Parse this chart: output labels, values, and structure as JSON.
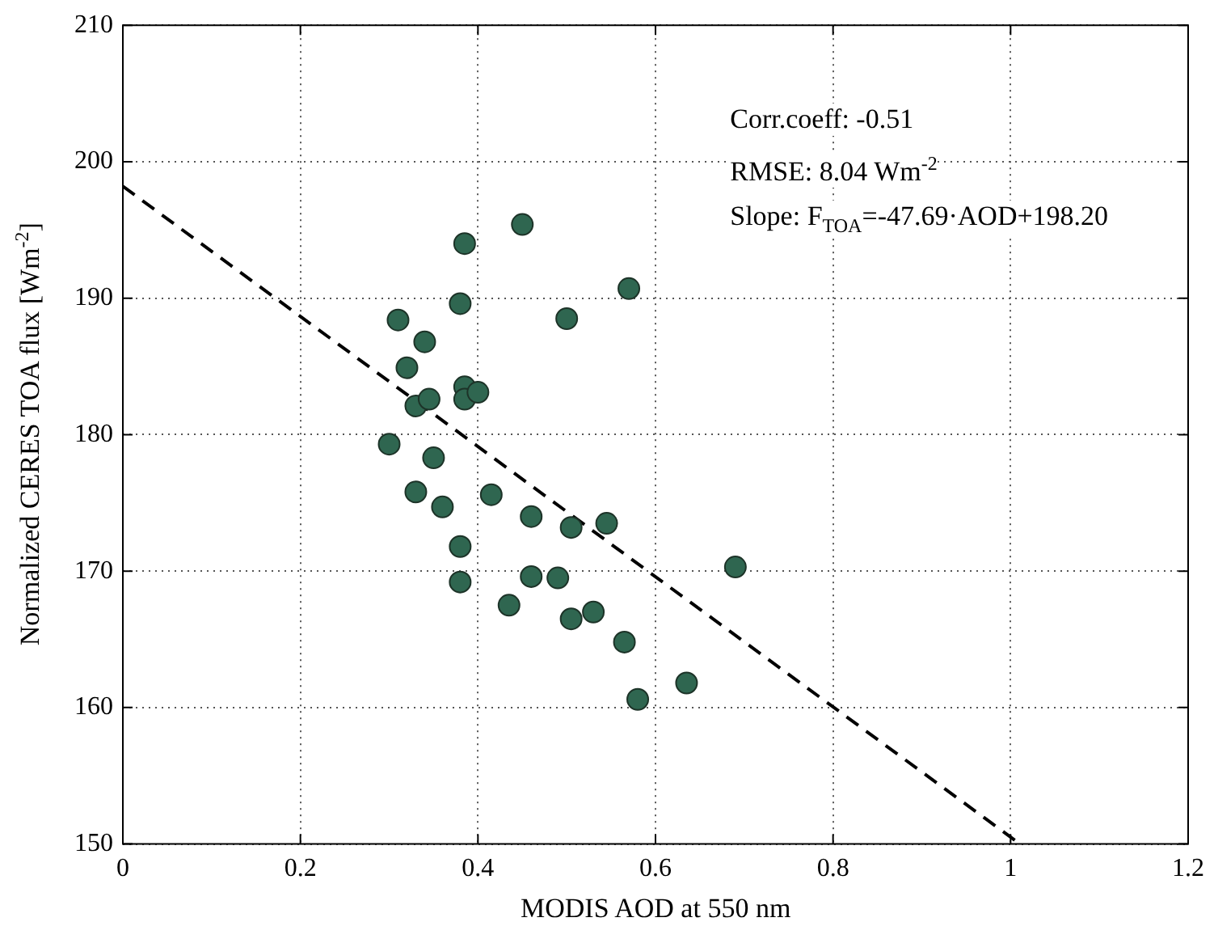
{
  "chart_data": {
    "type": "scatter",
    "xlabel": "MODIS AOD at 550 nm",
    "ylabel": "Normalized CERES TOA flux [Wm$^{-2}$]",
    "annotations": [
      "Corr.coeff: -0.51",
      "RMSE: 8.04 Wm$^{-2}$",
      "Slope: F$_{TOA}$=-47.69·AOD+198.20"
    ],
    "series": [
      {
        "color": "#2f6650",
        "marker": "circle",
        "x": [
          0.3,
          0.31,
          0.32,
          0.33,
          0.34,
          0.345,
          0.33,
          0.35,
          0.36,
          0.38,
          0.385,
          0.385,
          0.385,
          0.4,
          0.38,
          0.38,
          0.415,
          0.435,
          0.45,
          0.46,
          0.46,
          0.49,
          0.5,
          0.505,
          0.505,
          0.53,
          0.545,
          0.565,
          0.57,
          0.58,
          0.635,
          0.69
        ],
        "values": [
          179.3,
          188.4,
          184.9,
          182.1,
          186.8,
          182.6,
          175.8,
          178.3,
          174.7,
          189.6,
          194.0,
          183.5,
          182.6,
          183.1,
          171.8,
          169.2,
          175.6,
          167.5,
          195.4,
          174.0,
          169.6,
          169.5,
          188.5,
          173.2,
          166.5,
          167.0,
          173.5,
          164.8,
          190.7,
          160.6,
          161.8,
          170.3
        ]
      },
      {
        "type": "line",
        "color": "#000000",
        "line_style": "dashed",
        "marker": "none",
        "x": [
          0,
          1.0107
        ],
        "values": [
          198.2,
          150
        ]
      }
    ],
    "xlim": [
      0,
      1.2
    ],
    "xticks": [
      0,
      0.2,
      0.4,
      0.6,
      0.8,
      1,
      1.2
    ],
    "ylim": [
      150,
      210
    ],
    "yticks": [
      150,
      160,
      170,
      180,
      190,
      200,
      210
    ],
    "grid": true
  }
}
